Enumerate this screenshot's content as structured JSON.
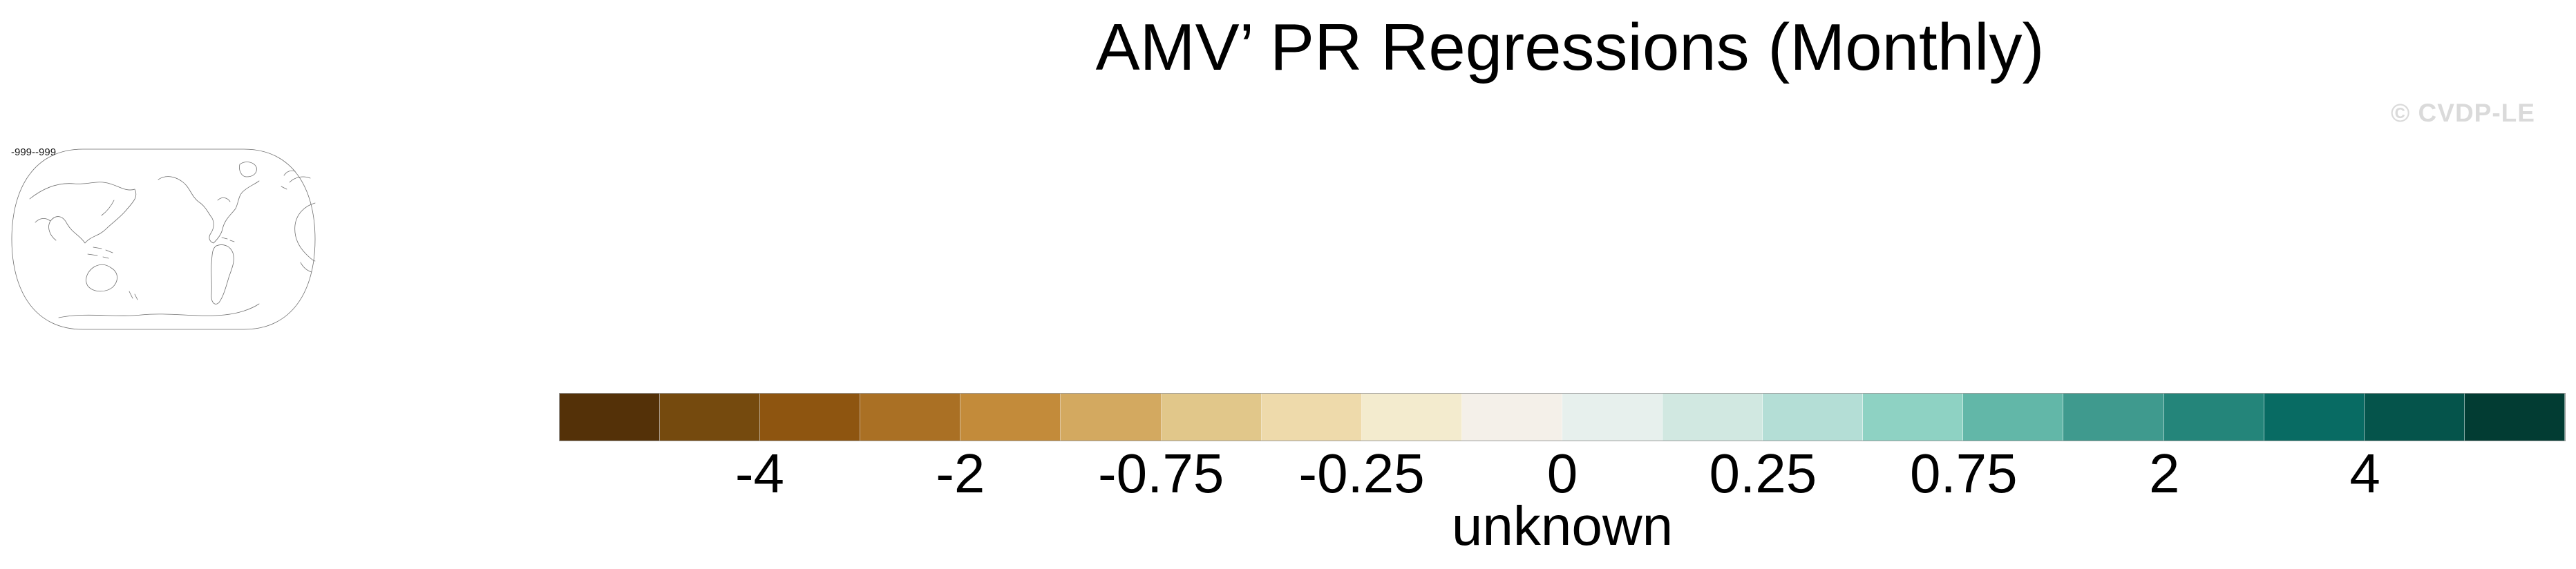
{
  "header": {
    "title": "AMV’ PR Regressions (Monthly)"
  },
  "watermark": {
    "text": "© CVDP-LE"
  },
  "map_inset": {
    "label": "-999--999"
  },
  "chart_data": {
    "type": "heatmap",
    "title": "AMV’ PR Regressions (Monthly)",
    "units_label": "unknown",
    "map_inset_label": "-999--999",
    "watermark": "© CVDP-LE",
    "legend_position": "bottom",
    "colorbar": {
      "segment_count": 20,
      "colors": [
        "#543108",
        "#754a0e",
        "#8e5510",
        "#aa7024",
        "#c38b3a",
        "#d3a960",
        "#e1c78a",
        "#eedaab",
        "#f3ebce",
        "#f4f0e9",
        "#e7f0ed",
        "#d1e8e1",
        "#b4ded6",
        "#8ed2c3",
        "#62b7a8",
        "#3f9a8e",
        "#24857a",
        "#086b63",
        "#05544b",
        "#023c33"
      ],
      "tick_labels": [
        "-4",
        "-2",
        "-0.75",
        "-0.25",
        "0",
        "0.25",
        "0.75",
        "2",
        "4"
      ],
      "ticks": [
        {
          "label": "-4",
          "boundary_index": 2
        },
        {
          "label": "-2",
          "boundary_index": 4
        },
        {
          "label": "-0.75",
          "boundary_index": 6
        },
        {
          "label": "-0.25",
          "boundary_index": 8
        },
        {
          "label": "0",
          "boundary_index": 10
        },
        {
          "label": "0.25",
          "boundary_index": 12
        },
        {
          "label": "0.75",
          "boundary_index": 14
        },
        {
          "label": "2",
          "boundary_index": 16
        },
        {
          "label": "4",
          "boundary_index": 18
        }
      ]
    }
  }
}
